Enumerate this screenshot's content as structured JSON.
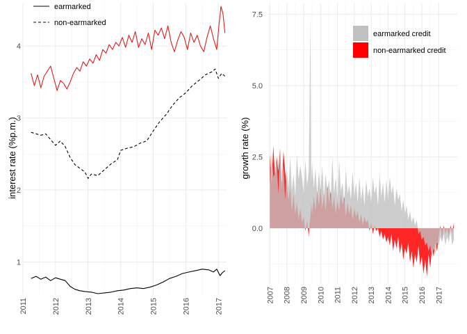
{
  "chart_data": [
    {
      "type": "line",
      "ylabel": "interest rate (%p.m.)",
      "xlabel": "",
      "xlim": [
        2011.0,
        2017.25
      ],
      "ylim": [
        0.55,
        4.6
      ],
      "x_ticks": [
        2011,
        2012,
        2013,
        2014,
        2015,
        2016,
        2017
      ],
      "y_ticks": [
        1,
        2,
        3,
        4
      ],
      "grid": true,
      "legend_position": "top-left",
      "series": [
        {
          "name": "earmarked",
          "color": "#000000",
          "dash": "solid",
          "x": [
            2011.25,
            2011.4,
            2011.55,
            2011.7,
            2011.85,
            2012.0,
            2012.15,
            2012.3,
            2012.45,
            2012.6,
            2012.75,
            2012.9,
            2013.1,
            2013.3,
            2013.5,
            2013.7,
            2013.9,
            2014.1,
            2014.3,
            2014.5,
            2014.7,
            2014.9,
            2015.1,
            2015.3,
            2015.5,
            2015.7,
            2015.9,
            2016.1,
            2016.3,
            2016.5,
            2016.7,
            2016.85,
            2016.95,
            2017.05,
            2017.12,
            2017.2
          ],
          "values": [
            0.77,
            0.8,
            0.76,
            0.79,
            0.74,
            0.78,
            0.76,
            0.74,
            0.66,
            0.62,
            0.6,
            0.59,
            0.58,
            0.56,
            0.57,
            0.58,
            0.6,
            0.61,
            0.63,
            0.64,
            0.63,
            0.65,
            0.68,
            0.72,
            0.77,
            0.8,
            0.84,
            0.86,
            0.88,
            0.9,
            0.89,
            0.86,
            0.9,
            0.81,
            0.85,
            0.88
          ]
        },
        {
          "name": "non-earmarked",
          "color": "#000000",
          "dash": "dashed",
          "x": [
            2011.25,
            2011.4,
            2011.55,
            2011.7,
            2011.85,
            2012.0,
            2012.15,
            2012.3,
            2012.45,
            2012.6,
            2012.75,
            2012.9,
            2013.0,
            2013.1,
            2013.3,
            2013.5,
            2013.7,
            2013.9,
            2014.0,
            2014.2,
            2014.4,
            2014.6,
            2014.8,
            2015.0,
            2015.2,
            2015.4,
            2015.6,
            2015.8,
            2016.0,
            2016.2,
            2016.4,
            2016.6,
            2016.8,
            2016.9,
            2017.0,
            2017.1,
            2017.2
          ],
          "values": [
            2.8,
            2.78,
            2.76,
            2.78,
            2.7,
            2.62,
            2.68,
            2.6,
            2.45,
            2.35,
            2.3,
            2.25,
            2.16,
            2.22,
            2.2,
            2.28,
            2.36,
            2.42,
            2.55,
            2.58,
            2.6,
            2.65,
            2.68,
            2.82,
            2.95,
            3.05,
            3.18,
            3.28,
            3.35,
            3.45,
            3.52,
            3.6,
            3.64,
            3.68,
            3.55,
            3.62,
            3.58
          ]
        },
        {
          "name": "",
          "color": "#e31a1c",
          "dash": "solid",
          "x": [
            2011.25,
            2011.35,
            2011.45,
            2011.55,
            2011.65,
            2011.75,
            2011.85,
            2011.95,
            2012.05,
            2012.15,
            2012.25,
            2012.35,
            2012.45,
            2012.55,
            2012.65,
            2012.75,
            2012.85,
            2012.95,
            2013.05,
            2013.15,
            2013.25,
            2013.35,
            2013.45,
            2013.55,
            2013.65,
            2013.75,
            2013.85,
            2013.95,
            2014.05,
            2014.15,
            2014.25,
            2014.35,
            2014.45,
            2014.55,
            2014.65,
            2014.75,
            2014.85,
            2014.95,
            2015.05,
            2015.15,
            2015.25,
            2015.35,
            2015.45,
            2015.55,
            2015.65,
            2015.75,
            2015.85,
            2015.95,
            2016.05,
            2016.15,
            2016.25,
            2016.35,
            2016.45,
            2016.55,
            2016.65,
            2016.75,
            2016.85,
            2016.95,
            2017.02,
            2017.08,
            2017.14,
            2017.2
          ],
          "values": [
            3.62,
            3.45,
            3.6,
            3.42,
            3.58,
            3.65,
            3.72,
            3.55,
            3.38,
            3.52,
            3.48,
            3.4,
            3.5,
            3.62,
            3.7,
            3.65,
            3.78,
            3.72,
            3.82,
            3.76,
            3.88,
            3.8,
            3.95,
            3.9,
            4.02,
            3.95,
            4.05,
            4.0,
            4.12,
            3.98,
            4.15,
            4.05,
            4.2,
            3.98,
            4.1,
            4.02,
            4.18,
            3.95,
            4.22,
            4.15,
            4.25,
            4.1,
            4.28,
            4.05,
            3.92,
            4.08,
            4.2,
            4.12,
            3.95,
            4.18,
            4.05,
            4.15,
            4.0,
            3.92,
            4.12,
            4.28,
            4.1,
            3.95,
            4.3,
            4.55,
            4.45,
            4.18
          ]
        }
      ]
    },
    {
      "type": "area",
      "ylabel": "growth rate (%)",
      "xlabel": "",
      "xlim": [
        2006.9,
        2018.1
      ],
      "ylim": [
        -1.95,
        7.9
      ],
      "x_ticks": [
        2007,
        2008,
        2009,
        2010,
        2011,
        2012,
        2013,
        2014,
        2015,
        2016,
        2017
      ],
      "y_ticks": [
        0.0,
        2.5,
        5.0,
        7.5
      ],
      "y_tick_labels": [
        "0.0",
        "2.5",
        "5.0",
        "7.5"
      ],
      "grid": true,
      "legend_position": "top-right",
      "series": [
        {
          "name": "earmarked credit",
          "color": "#c0c0c0",
          "x": [
            2007.0,
            2007.1,
            2007.2,
            2007.3,
            2007.4,
            2007.5,
            2007.6,
            2007.7,
            2007.8,
            2007.9,
            2008.0,
            2008.1,
            2008.2,
            2008.3,
            2008.4,
            2008.5,
            2008.6,
            2008.7,
            2008.8,
            2008.9,
            2009.0,
            2009.1,
            2009.2,
            2009.3,
            2009.35,
            2009.4,
            2009.45,
            2009.5,
            2009.6,
            2009.7,
            2009.8,
            2009.9,
            2010.0,
            2010.1,
            2010.2,
            2010.3,
            2010.4,
            2010.5,
            2010.6,
            2010.7,
            2010.8,
            2010.9,
            2011.0,
            2011.1,
            2011.2,
            2011.3,
            2011.4,
            2011.5,
            2011.6,
            2011.7,
            2011.8,
            2011.9,
            2012.0,
            2012.1,
            2012.2,
            2012.3,
            2012.4,
            2012.5,
            2012.6,
            2012.7,
            2012.8,
            2012.9,
            2013.0,
            2013.1,
            2013.2,
            2013.3,
            2013.4,
            2013.5,
            2013.6,
            2013.7,
            2013.8,
            2013.9,
            2014.0,
            2014.1,
            2014.2,
            2014.3,
            2014.4,
            2014.5,
            2014.6,
            2014.7,
            2014.8,
            2014.9,
            2015.0,
            2015.1,
            2015.2,
            2015.3,
            2015.4,
            2015.5,
            2015.6,
            2015.7,
            2015.8,
            2015.9,
            2016.0,
            2016.1,
            2016.2,
            2016.3,
            2016.4,
            2016.5,
            2016.6,
            2016.7,
            2016.8,
            2016.9,
            2017.0,
            2017.1,
            2017.2,
            2017.3,
            2017.4,
            2017.5,
            2017.6,
            2017.7,
            2017.8,
            2017.9
          ],
          "values": [
            1.5,
            2.6,
            1.8,
            1.9,
            2.4,
            1.2,
            2.8,
            1.6,
            2.2,
            1.0,
            2.1,
            1.4,
            2.5,
            1.3,
            1.9,
            1.1,
            2.6,
            1.7,
            2.2,
            1.8,
            1.2,
            2.4,
            1.5,
            2.0,
            4.5,
            7.5,
            1.6,
            2.3,
            1.4,
            2.1,
            1.2,
            2.0,
            1.3,
            2.2,
            1.1,
            1.9,
            1.3,
            1.7,
            1.0,
            2.5,
            1.2,
            1.8,
            1.0,
            2.4,
            1.3,
            1.6,
            0.9,
            2.1,
            1.2,
            1.5,
            1.0,
            2.0,
            1.1,
            1.6,
            0.9,
            1.8,
            1.0,
            1.5,
            0.8,
            1.7,
            1.1,
            1.4,
            0.9,
            1.8,
            1.2,
            1.5,
            0.8,
            1.9,
            1.1,
            1.6,
            0.9,
            1.7,
            1.0,
            1.8,
            1.2,
            1.5,
            0.8,
            1.4,
            1.0,
            1.2,
            0.6,
            1.0,
            0.5,
            0.8,
            0.3,
            0.6,
            0.2,
            0.4,
            0.1,
            0.3,
            -0.2,
            -0.1,
            -0.4,
            -0.3,
            -0.6,
            -0.5,
            -0.8,
            -0.6,
            -1.0,
            -0.7,
            -0.9,
            -0.5,
            -0.6,
            -0.3,
            -0.5,
            -0.2,
            -0.6,
            -0.3,
            -0.5,
            -0.1,
            -0.6,
            -0.4
          ]
        },
        {
          "name": "non-earmarked credit",
          "color": "#ff0000",
          "x": [
            2007.0,
            2007.1,
            2007.2,
            2007.3,
            2007.4,
            2007.5,
            2007.6,
            2007.7,
            2007.8,
            2007.9,
            2008.0,
            2008.1,
            2008.2,
            2008.3,
            2008.4,
            2008.5,
            2008.6,
            2008.7,
            2008.8,
            2008.9,
            2009.0,
            2009.1,
            2009.2,
            2009.3,
            2009.35,
            2009.4,
            2009.45,
            2009.5,
            2009.6,
            2009.7,
            2009.8,
            2009.9,
            2010.0,
            2010.1,
            2010.2,
            2010.3,
            2010.4,
            2010.5,
            2010.6,
            2010.7,
            2010.8,
            2010.9,
            2011.0,
            2011.1,
            2011.2,
            2011.3,
            2011.4,
            2011.5,
            2011.6,
            2011.7,
            2011.8,
            2011.9,
            2012.0,
            2012.1,
            2012.2,
            2012.3,
            2012.4,
            2012.5,
            2012.6,
            2012.7,
            2012.8,
            2012.9,
            2013.0,
            2013.1,
            2013.2,
            2013.3,
            2013.4,
            2013.5,
            2013.6,
            2013.7,
            2013.8,
            2013.9,
            2014.0,
            2014.1,
            2014.2,
            2014.3,
            2014.4,
            2014.5,
            2014.6,
            2014.7,
            2014.8,
            2014.9,
            2015.0,
            2015.1,
            2015.2,
            2015.3,
            2015.4,
            2015.5,
            2015.6,
            2015.7,
            2015.8,
            2015.9,
            2016.0,
            2016.1,
            2016.2,
            2016.3,
            2016.4,
            2016.5,
            2016.6,
            2016.7,
            2016.8,
            2016.9,
            2017.0,
            2017.1,
            2017.2,
            2017.3,
            2017.4,
            2017.5,
            2017.6,
            2017.7,
            2017.8,
            2017.9
          ],
          "values": [
            2.6,
            1.6,
            2.9,
            1.8,
            2.5,
            2.0,
            2.8,
            1.4,
            2.7,
            2.0,
            1.5,
            1.0,
            1.4,
            0.6,
            1.2,
            0.5,
            0.9,
            0.3,
            0.7,
            0.2,
            0.4,
            -0.1,
            0.3,
            -0.3,
            0.2,
            0.4,
            0.9,
            0.5,
            1.1,
            0.6,
            1.3,
            0.8,
            1.4,
            0.7,
            1.2,
            0.6,
            1.5,
            0.9,
            1.3,
            0.7,
            1.1,
            0.5,
            1.0,
            0.6,
            1.2,
            0.8,
            1.1,
            0.4,
            0.9,
            0.5,
            0.8,
            0.3,
            0.7,
            0.4,
            0.6,
            0.2,
            0.5,
            0.1,
            0.4,
            0.2,
            0.3,
            -0.1,
            0.2,
            -0.2,
            0.1,
            -0.1,
            0.0,
            -0.3,
            -0.1,
            -0.4,
            -0.2,
            -0.5,
            -0.3,
            -0.6,
            -0.2,
            -0.8,
            -0.4,
            -0.7,
            -0.3,
            -0.9,
            -0.5,
            -1.1,
            -0.7,
            -0.9,
            -0.5,
            -1.2,
            -0.8,
            -1.4,
            -0.9,
            -1.2,
            -0.6,
            -1.3,
            -1.0,
            -1.6,
            -1.1,
            -1.7,
            -0.9,
            -1.4,
            -0.7,
            -1.0,
            -0.5,
            -0.8,
            -0.3,
            0.1,
            -0.4,
            0.1,
            -0.2,
            0.0,
            -0.3,
            0.1,
            -0.2,
            0.2
          ]
        }
      ]
    }
  ]
}
